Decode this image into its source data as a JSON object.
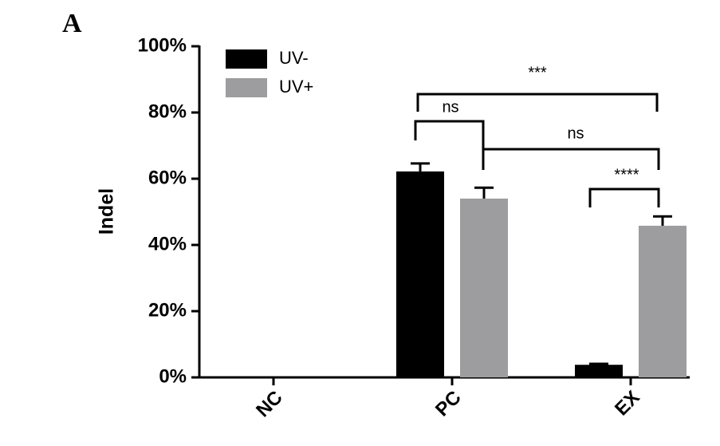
{
  "panel_label": "A",
  "chart_data": {
    "type": "bar",
    "ylabel": "Indel",
    "categories": [
      "NC",
      "PC",
      "EX"
    ],
    "series": [
      {
        "name": "UV-",
        "color": "#000000",
        "values": [
          0,
          62.2,
          3.8
        ],
        "errors": [
          0,
          2.4,
          0.3
        ]
      },
      {
        "name": "UV+",
        "color": "#9d9d9f",
        "values": [
          0,
          54.0,
          45.8
        ],
        "errors": [
          0,
          3.3,
          2.8
        ]
      }
    ],
    "ylim": [
      0,
      100
    ],
    "yticks": [
      {
        "value": 0,
        "label": "0%"
      },
      {
        "value": 20,
        "label": "20%"
      },
      {
        "value": 40,
        "label": "40%"
      },
      {
        "value": 60,
        "label": "60%"
      },
      {
        "value": 80,
        "label": "80%"
      },
      {
        "value": 100,
        "label": "100%"
      }
    ],
    "legend": "upper left",
    "annotations": [
      "***",
      "ns",
      "ns",
      "****"
    ]
  }
}
